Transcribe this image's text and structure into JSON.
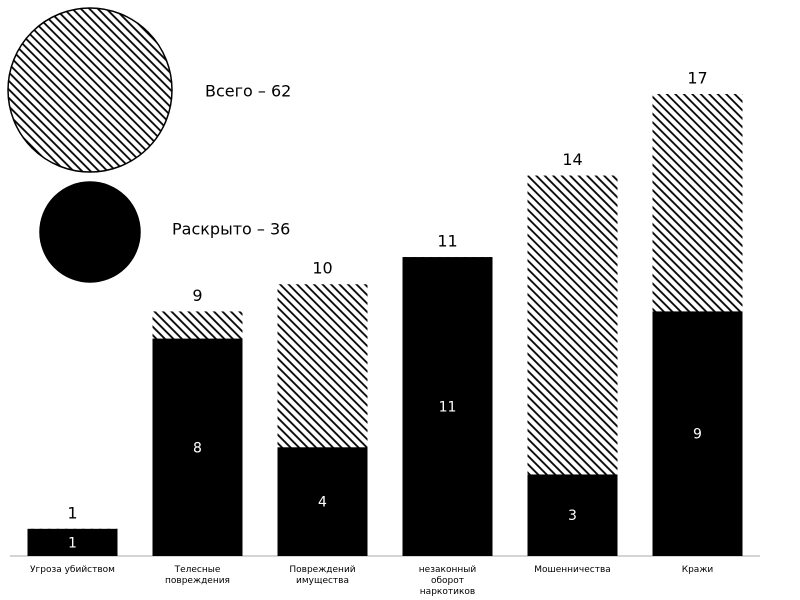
{
  "chart_data": {
    "type": "bar",
    "categories": [
      "Угроза убийством",
      "Телесные повреждения",
      "Повреждений имущества",
      "незаконный оборот наркотиков",
      "Мошенничества",
      "Кражи"
    ],
    "series": [
      {
        "name": "Всего – 62",
        "color": "#000000",
        "hatch": true,
        "values": [
          1,
          9,
          10,
          11,
          14,
          17
        ]
      },
      {
        "name": "Раскрыто – 36",
        "color": "#000000",
        "hatch": false,
        "values": [
          1,
          8,
          4,
          11,
          3,
          9
        ]
      }
    ]
  }
}
